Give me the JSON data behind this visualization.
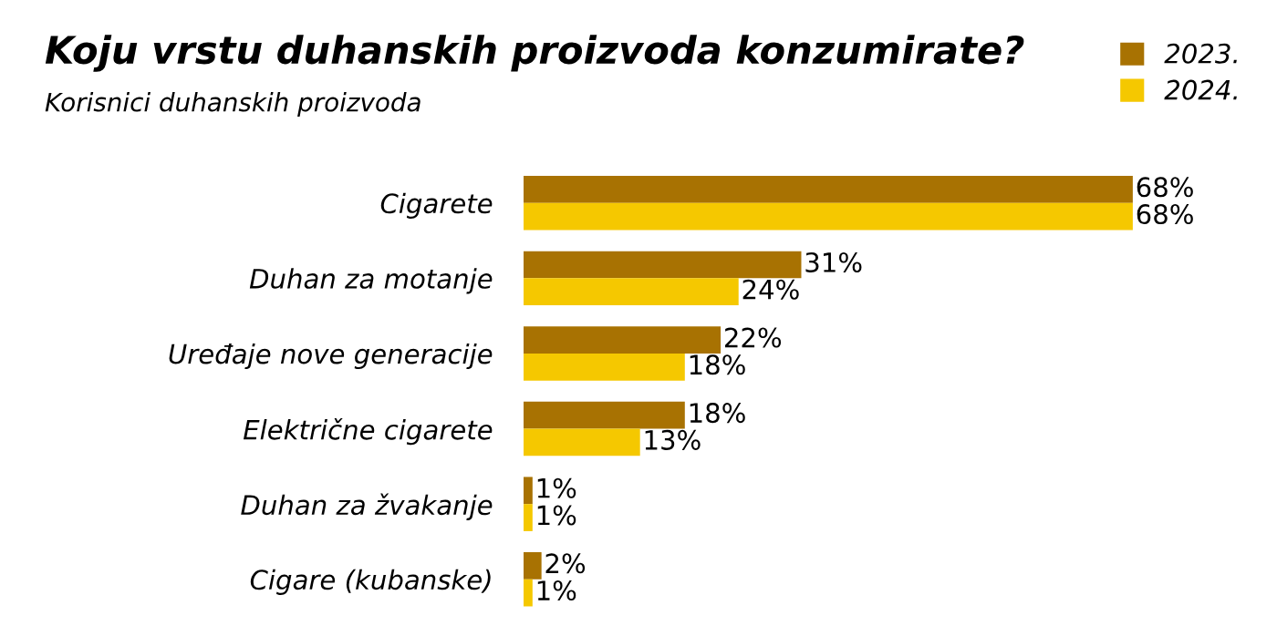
{
  "chart_data": {
    "type": "bar",
    "orientation": "horizontal",
    "title": "Koju vrstu duhanskih proizvoda konzumirate?",
    "subtitle": "Korisnici duhanskih proizvoda",
    "categories": [
      "Cigarete",
      "Duhan za motanje",
      "Uređaje nove generacije",
      "Električne cigarete",
      "Duhan za žvakanje",
      "Cigare (kubanske)"
    ],
    "series": [
      {
        "name": "2023.",
        "color": "#a87202",
        "values": [
          68,
          31,
          22,
          18,
          1,
          2
        ],
        "value_labels": [
          "68%",
          "31%",
          "22%",
          "18%",
          "1%",
          "2%"
        ]
      },
      {
        "name": "2024.",
        "color": "#f5c800",
        "values": [
          68,
          24,
          18,
          13,
          1,
          1
        ],
        "value_labels": [
          "68%",
          "24%",
          "18%",
          "13%",
          "1%",
          "1%"
        ]
      }
    ],
    "legend": "top right",
    "grid": false
  }
}
